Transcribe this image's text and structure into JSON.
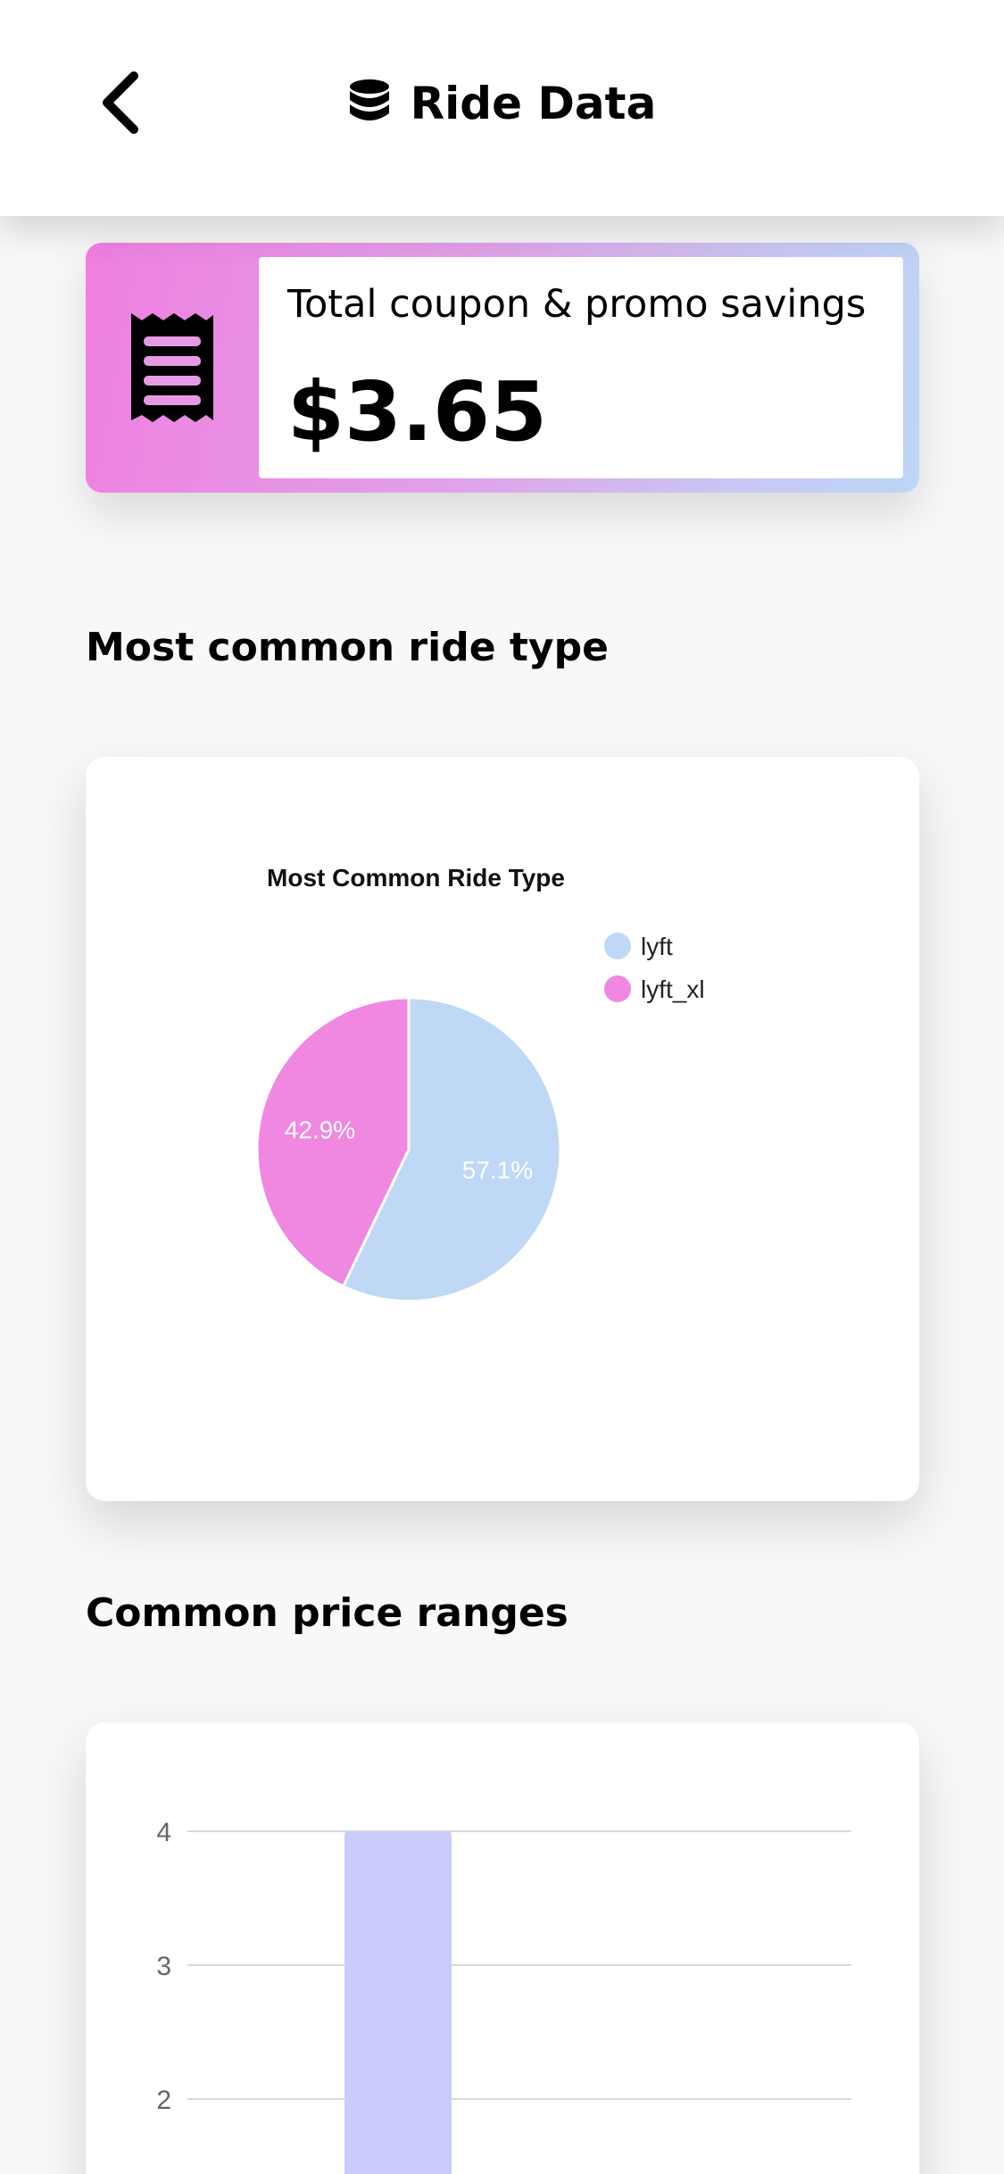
{
  "header": {
    "title": "Ride Data",
    "back_icon": "chevron-left-icon",
    "title_icon": "database-icon"
  },
  "savings": {
    "label": "Total coupon & promo savings",
    "value": "$3.65",
    "icon": "receipt-icon",
    "gradient_colors": [
      "#ef7fe0",
      "#bcd6f7"
    ]
  },
  "sections": {
    "ride_type_title": "Most common ride type",
    "price_ranges_title": "Common price ranges"
  },
  "chart_data": [
    {
      "type": "pie",
      "title": "Most Common Ride Type",
      "legend_position": "top-right",
      "slices": [
        {
          "label": "lyft",
          "value": 57.1,
          "display": "57.1%",
          "color": "#bed8f6"
        },
        {
          "label": "lyft_xl",
          "value": 42.9,
          "display": "42.9%",
          "color": "#f088e2"
        }
      ]
    },
    {
      "type": "bar",
      "title": "",
      "xlabel": "",
      "ylabel": "",
      "categories": [
        ""
      ],
      "values": [
        4
      ],
      "bar_color": "#c9cbfa",
      "grid": true,
      "yticks_visible": [
        4,
        3,
        2
      ],
      "ylim_visible": [
        1.6,
        4
      ]
    }
  ]
}
